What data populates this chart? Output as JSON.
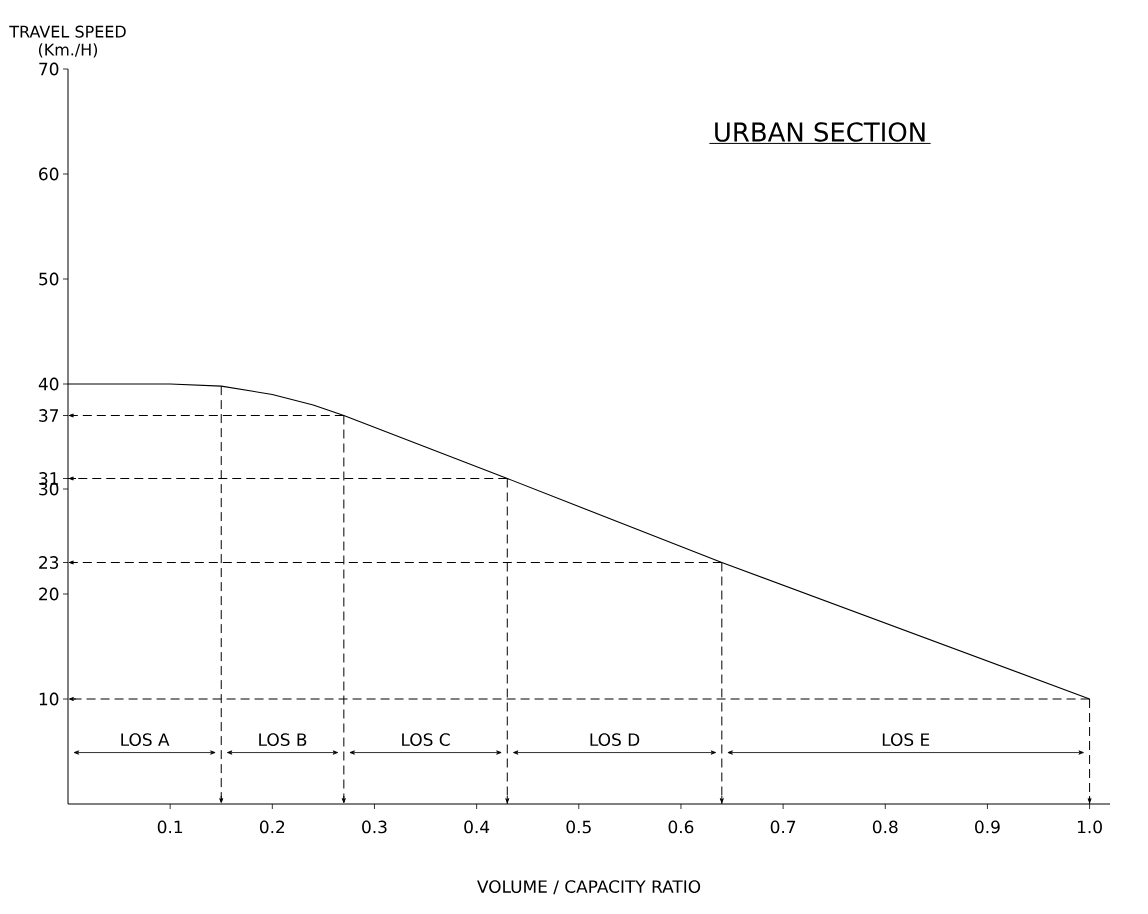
{
  "chart_data": {
    "type": "line",
    "title": "URBAN SECTION",
    "xlabel": "VOLUME / CAPACITY RATIO",
    "ylabel": "TRAVEL SPEED (Km./H)",
    "series": [
      {
        "color": "#000000",
        "x": [
          0,
          0.1,
          0.15,
          0.2,
          0.24,
          0.27,
          0.43,
          0.64,
          1.0
        ],
        "values": [
          40,
          40,
          39.8,
          39,
          38,
          37,
          31,
          23,
          10
        ]
      }
    ],
    "xlim": [
      0,
      1.02
    ],
    "ylim": [
      0,
      70
    ],
    "xticks": [
      0.1,
      0.2,
      0.3,
      0.4,
      0.5,
      0.6,
      0.7,
      0.8,
      0.9,
      {
        "value": 1,
        "label": "1.0"
      }
    ],
    "yticks": [
      10,
      20,
      23,
      30,
      31,
      37,
      40,
      50,
      60,
      70
    ],
    "ref_lines": [
      {
        "axis": "y",
        "value": 37,
        "line_style": "dashed"
      },
      {
        "axis": "y",
        "value": 31,
        "line_style": "dashed"
      },
      {
        "axis": "y",
        "value": 23,
        "line_style": "dashed"
      },
      {
        "axis": "y",
        "value": 10,
        "line_style": "dashed"
      },
      {
        "axis": "x",
        "value": 0.15,
        "line_style": "dashed"
      },
      {
        "axis": "x",
        "value": 0.27,
        "line_style": "dashed"
      },
      {
        "axis": "x",
        "value": 0.43,
        "line_style": "dashed"
      },
      {
        "axis": "x",
        "value": 0.64,
        "line_style": "dashed"
      },
      {
        "axis": "x",
        "value": 1,
        "line_style": "dashed"
      }
    ],
    "annotations": [
      "LOS A",
      "LOS B",
      "LOS C",
      "LOS D",
      "LOS E"
    ],
    "grid": false,
    "marker": "none",
    "line_style": "solid"
  }
}
